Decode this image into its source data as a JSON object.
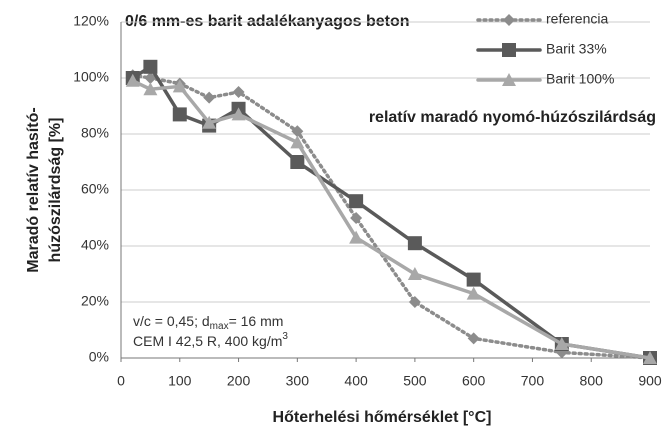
{
  "chart_data": {
    "type": "line",
    "title": "0/6 mm-es barit adalékanyagos beton",
    "annotation": "relatív maradó nyomó-húzószilárdság",
    "notes": [
      [
        "v/c = 0,45; d",
        "max",
        "= 16 mm"
      ],
      [
        "CEM I 42,5 R, 400 kg/m",
        "3"
      ]
    ],
    "xlabel": "Hőterhelési hőmérséklet [°C]",
    "ylabel": [
      "Maradó relatív hasító-",
      "húzószilárdság [%]"
    ],
    "x": [
      20,
      50,
      100,
      150,
      200,
      300,
      400,
      500,
      600,
      750,
      900
    ],
    "series": [
      {
        "name": "referencia",
        "color": "#8c8c8c",
        "marker": "diamond",
        "linestyle": "dotted",
        "values": [
          101,
          100,
          98,
          93,
          95,
          81,
          50,
          20,
          7,
          2,
          0
        ]
      },
      {
        "name": "Barit 33%",
        "color": "#5a5a5a",
        "marker": "square",
        "linestyle": "solid",
        "values": [
          100,
          104,
          87,
          83,
          89,
          70,
          56,
          41,
          28,
          5,
          0
        ]
      },
      {
        "name": "Barit 100%",
        "color": "#a8a8a8",
        "marker": "triangle",
        "linestyle": "solid",
        "values": [
          99,
          96,
          97,
          84,
          87,
          77,
          43,
          30,
          23,
          5,
          0
        ]
      }
    ],
    "xlim": [
      0,
      900
    ],
    "xticks": [
      0,
      100,
      200,
      300,
      400,
      500,
      600,
      700,
      800,
      900
    ],
    "ylim": [
      0,
      120
    ],
    "yticks": [
      {
        "value": 0,
        "label": "0%"
      },
      {
        "value": 20,
        "label": "20%"
      },
      {
        "value": 40,
        "label": "40%"
      },
      {
        "value": 60,
        "label": "60%"
      },
      {
        "value": 80,
        "label": "80%"
      },
      {
        "value": 100,
        "label": "100%"
      },
      {
        "value": 120,
        "label": "120%"
      }
    ],
    "grid": true,
    "legend": "top-right"
  }
}
